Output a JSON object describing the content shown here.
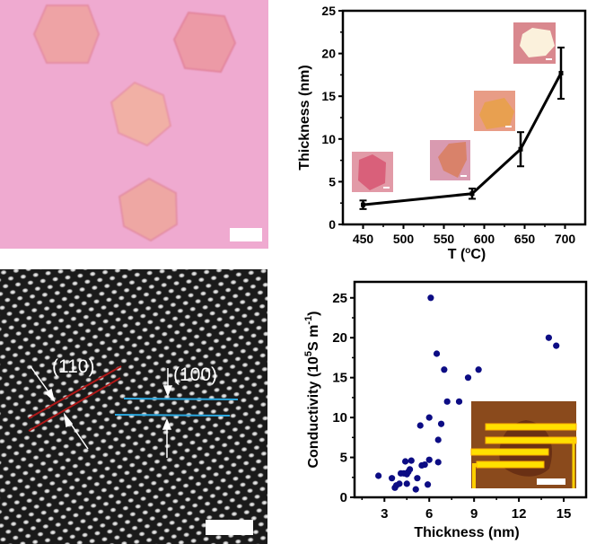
{
  "figure": {
    "panel_a": {
      "description": "Optical image of hexagonal flakes on substrate",
      "scale_bar": true
    },
    "panel_c": {
      "description": "Atomic-resolution lattice image",
      "labels": [
        "(110)",
        "(100)"
      ],
      "line_colors": {
        "plane_110": "#b01818",
        "plane_100": "#2aa8e0"
      },
      "scale_bar": true
    }
  },
  "chart_data": [
    {
      "type": "line",
      "title": "",
      "xlabel": "T (°C)",
      "ylabel": "Thickness (nm)",
      "xlim": [
        425,
        725
      ],
      "ylim": [
        0,
        25
      ],
      "xticks": [
        450,
        500,
        550,
        600,
        650,
        700
      ],
      "yticks": [
        0,
        5,
        10,
        15,
        20,
        25
      ],
      "grid": false,
      "series": [
        {
          "name": "Thickness",
          "color": "#000000",
          "x": [
            450,
            585,
            645,
            695
          ],
          "y": [
            2.3,
            3.6,
            8.8,
            17.7
          ],
          "error": [
            0.5,
            0.6,
            2.0,
            3.0
          ]
        }
      ],
      "insets": [
        {
          "near_x": 450,
          "flake_color": "#d9607a",
          "bg_color": "#e29aa7",
          "shape": "hexagon"
        },
        {
          "near_x": 585,
          "flake_color": "#d9826a",
          "bg_color": "#d99ab0",
          "shape": "irregular-hexagon"
        },
        {
          "near_x": 645,
          "flake_color": "#e8a050",
          "bg_color": "#e89c86",
          "shape": "hexagon"
        },
        {
          "near_x": 695,
          "flake_color": "#fbf1dc",
          "bg_color": "#d9888e",
          "shape": "hexagon"
        }
      ]
    },
    {
      "type": "scatter",
      "title": "",
      "xlabel": "Thickness (nm)",
      "ylabel_parts": {
        "prefix": "Conductivity (10",
        "sup1": "5",
        "mid": "S m",
        "sup2": "-1",
        "suffix": ")"
      },
      "xlim": [
        1,
        16.5
      ],
      "ylim": [
        0,
        27
      ],
      "xticks": [
        3,
        6,
        9,
        12,
        15
      ],
      "yticks": [
        0,
        5,
        10,
        15,
        20,
        25
      ],
      "grid": false,
      "point_color": "#0c0c84",
      "points": [
        [
          2.6,
          2.7
        ],
        [
          3.5,
          2.4
        ],
        [
          3.7,
          1.2
        ],
        [
          3.8,
          1.5
        ],
        [
          4.0,
          1.7
        ],
        [
          4.1,
          3.0
        ],
        [
          4.3,
          3.0
        ],
        [
          4.4,
          4.5
        ],
        [
          4.5,
          1.7
        ],
        [
          4.5,
          2.9
        ],
        [
          4.6,
          3.2
        ],
        [
          4.7,
          3.5
        ],
        [
          4.8,
          4.6
        ],
        [
          5.1,
          1.0
        ],
        [
          5.2,
          2.4
        ],
        [
          5.4,
          9.0
        ],
        [
          5.5,
          4.0
        ],
        [
          5.7,
          4.1
        ],
        [
          5.9,
          1.6
        ],
        [
          6.0,
          10.0
        ],
        [
          6.0,
          4.7
        ],
        [
          6.1,
          25.0
        ],
        [
          6.5,
          18.0
        ],
        [
          6.6,
          7.2
        ],
        [
          6.6,
          4.4
        ],
        [
          6.8,
          9.2
        ],
        [
          7.0,
          16.0
        ],
        [
          7.2,
          12.0
        ],
        [
          8.0,
          12.0
        ],
        [
          8.6,
          15.0
        ],
        [
          9.3,
          16.0
        ],
        [
          14.0,
          20.0
        ],
        [
          14.5,
          19.0
        ]
      ],
      "inset": {
        "description": "Optical image of device with electrodes",
        "bg_color": "#8a4a1c",
        "electrode_color": "#ffe000",
        "scale_bar": true
      }
    }
  ]
}
